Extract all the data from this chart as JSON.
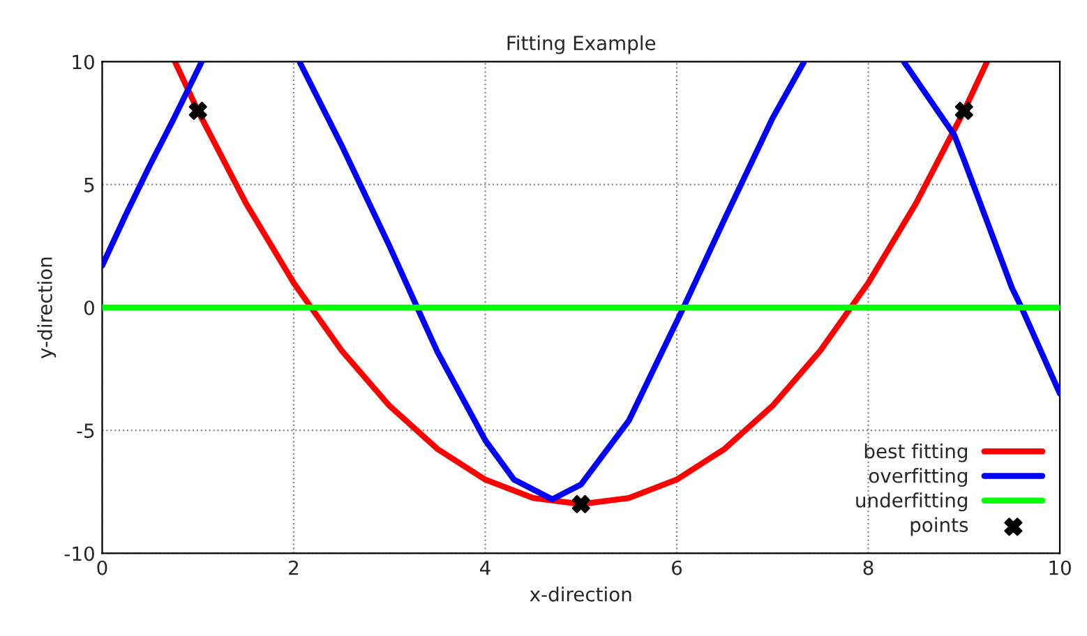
{
  "chart_data": {
    "type": "line",
    "title": "Fitting Example",
    "xlabel": "x-direction",
    "ylabel": "y-direction",
    "xlim": [
      0,
      10
    ],
    "ylim": [
      -10,
      10
    ],
    "xticks": [
      0,
      2,
      4,
      6,
      8,
      10
    ],
    "yticks": [
      -10,
      -5,
      0,
      5,
      10
    ],
    "grid": true,
    "legend": "bottom right",
    "line_style": "solid",
    "series": [
      {
        "name": "best fitting",
        "color": "#ff0000",
        "x": [
          0.76,
          1,
          1.5,
          2,
          2.5,
          3,
          3.5,
          4,
          4.5,
          5,
          5.5,
          6,
          6.5,
          7,
          7.5,
          8,
          8.5,
          9,
          9.24
        ],
        "values": [
          10,
          8,
          4.25,
          1,
          -1.75,
          -4,
          -5.75,
          -7,
          -7.75,
          -8,
          -7.75,
          -7,
          -5.75,
          -4,
          -1.75,
          1,
          4.25,
          8,
          10
        ]
      },
      {
        "name": "overfitting",
        "color": "#0000ff",
        "x": [
          0,
          0.25,
          0.5,
          0.75,
          1.04,
          1.5,
          2.06,
          2.5,
          3.0,
          3.29,
          3.5,
          4.0,
          4.3,
          4.7,
          5.0,
          5.5,
          6.07,
          6.5,
          7.0,
          7.33,
          7.8,
          8.37,
          8.9,
          9.0,
          9.5,
          9.6,
          10
        ],
        "values": [
          1.7,
          3.8,
          5.8,
          7.7,
          10,
          null,
          10,
          6.6,
          2.5,
          0,
          -1.8,
          -5.4,
          -7.0,
          -7.8,
          -7.2,
          -4.6,
          0,
          3.6,
          7.7,
          10,
          null,
          10,
          7.0,
          6.0,
          0.8,
          0,
          -3.5
        ]
      },
      {
        "name": "underfitting",
        "color": "#00ff00",
        "x": [
          0,
          10
        ],
        "values": [
          0,
          0
        ]
      },
      {
        "name": "points",
        "color": "#000000",
        "type": "scatter",
        "marker": "cross",
        "x": [
          1,
          5,
          9
        ],
        "values": [
          8,
          -8,
          8
        ]
      }
    ]
  }
}
